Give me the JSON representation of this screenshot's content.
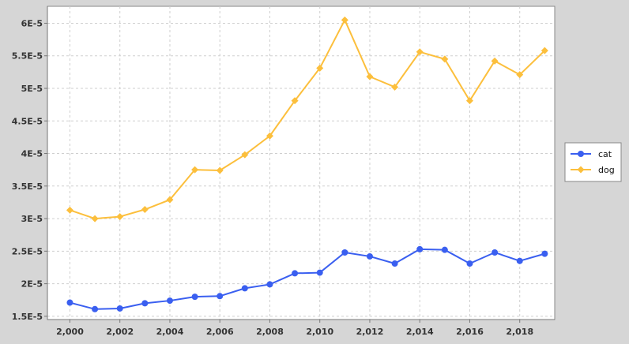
{
  "chart_data": {
    "type": "line",
    "title": "",
    "xlabel": "",
    "ylabel": "",
    "x": [
      2000,
      2001,
      2002,
      2003,
      2004,
      2005,
      2006,
      2007,
      2008,
      2009,
      2010,
      2011,
      2012,
      2013,
      2014,
      2015,
      2016,
      2017,
      2018,
      2019
    ],
    "xlim": [
      1999.1,
      2019.4
    ],
    "ylim": [
      1.45e-05,
      6.26e-05
    ],
    "x_ticks": [
      2000,
      2002,
      2004,
      2006,
      2008,
      2010,
      2012,
      2014,
      2016,
      2018
    ],
    "x_tick_labels": [
      "2,000",
      "2,002",
      "2,004",
      "2,006",
      "2,008",
      "2,010",
      "2,012",
      "2,014",
      "2,016",
      "2,018"
    ],
    "y_ticks": [
      1.5e-05,
      2e-05,
      2.5e-05,
      3e-05,
      3.5e-05,
      4e-05,
      4.5e-05,
      5e-05,
      5.5e-05,
      6e-05
    ],
    "y_tick_labels": [
      "1.5E-5",
      "2E-5",
      "2.5E-5",
      "3E-5",
      "3.5E-5",
      "4E-5",
      "4.5E-5",
      "5E-5",
      "5.5E-5",
      "6E-5"
    ],
    "grid": true,
    "legend_position": "right",
    "series": [
      {
        "name": "cat",
        "color": "#3a5ff0",
        "marker": "circle",
        "values": [
          1.71e-05,
          1.61e-05,
          1.62e-05,
          1.7e-05,
          1.74e-05,
          1.8e-05,
          1.81e-05,
          1.93e-05,
          1.99e-05,
          2.16e-05,
          2.17e-05,
          2.48e-05,
          2.42e-05,
          2.31e-05,
          2.53e-05,
          2.52e-05,
          2.31e-05,
          2.48e-05,
          2.35e-05,
          2.46e-05
        ]
      },
      {
        "name": "dog",
        "color": "#fcbf3c",
        "marker": "diamond",
        "values": [
          3.13e-05,
          3e-05,
          3.03e-05,
          3.14e-05,
          3.29e-05,
          3.75e-05,
          3.74e-05,
          3.98e-05,
          4.27e-05,
          4.81e-05,
          5.31e-05,
          6.05e-05,
          5.18e-05,
          5.02e-05,
          5.56e-05,
          5.45e-05,
          4.81e-05,
          5.42e-05,
          5.21e-05,
          5.58e-05
        ]
      }
    ]
  }
}
